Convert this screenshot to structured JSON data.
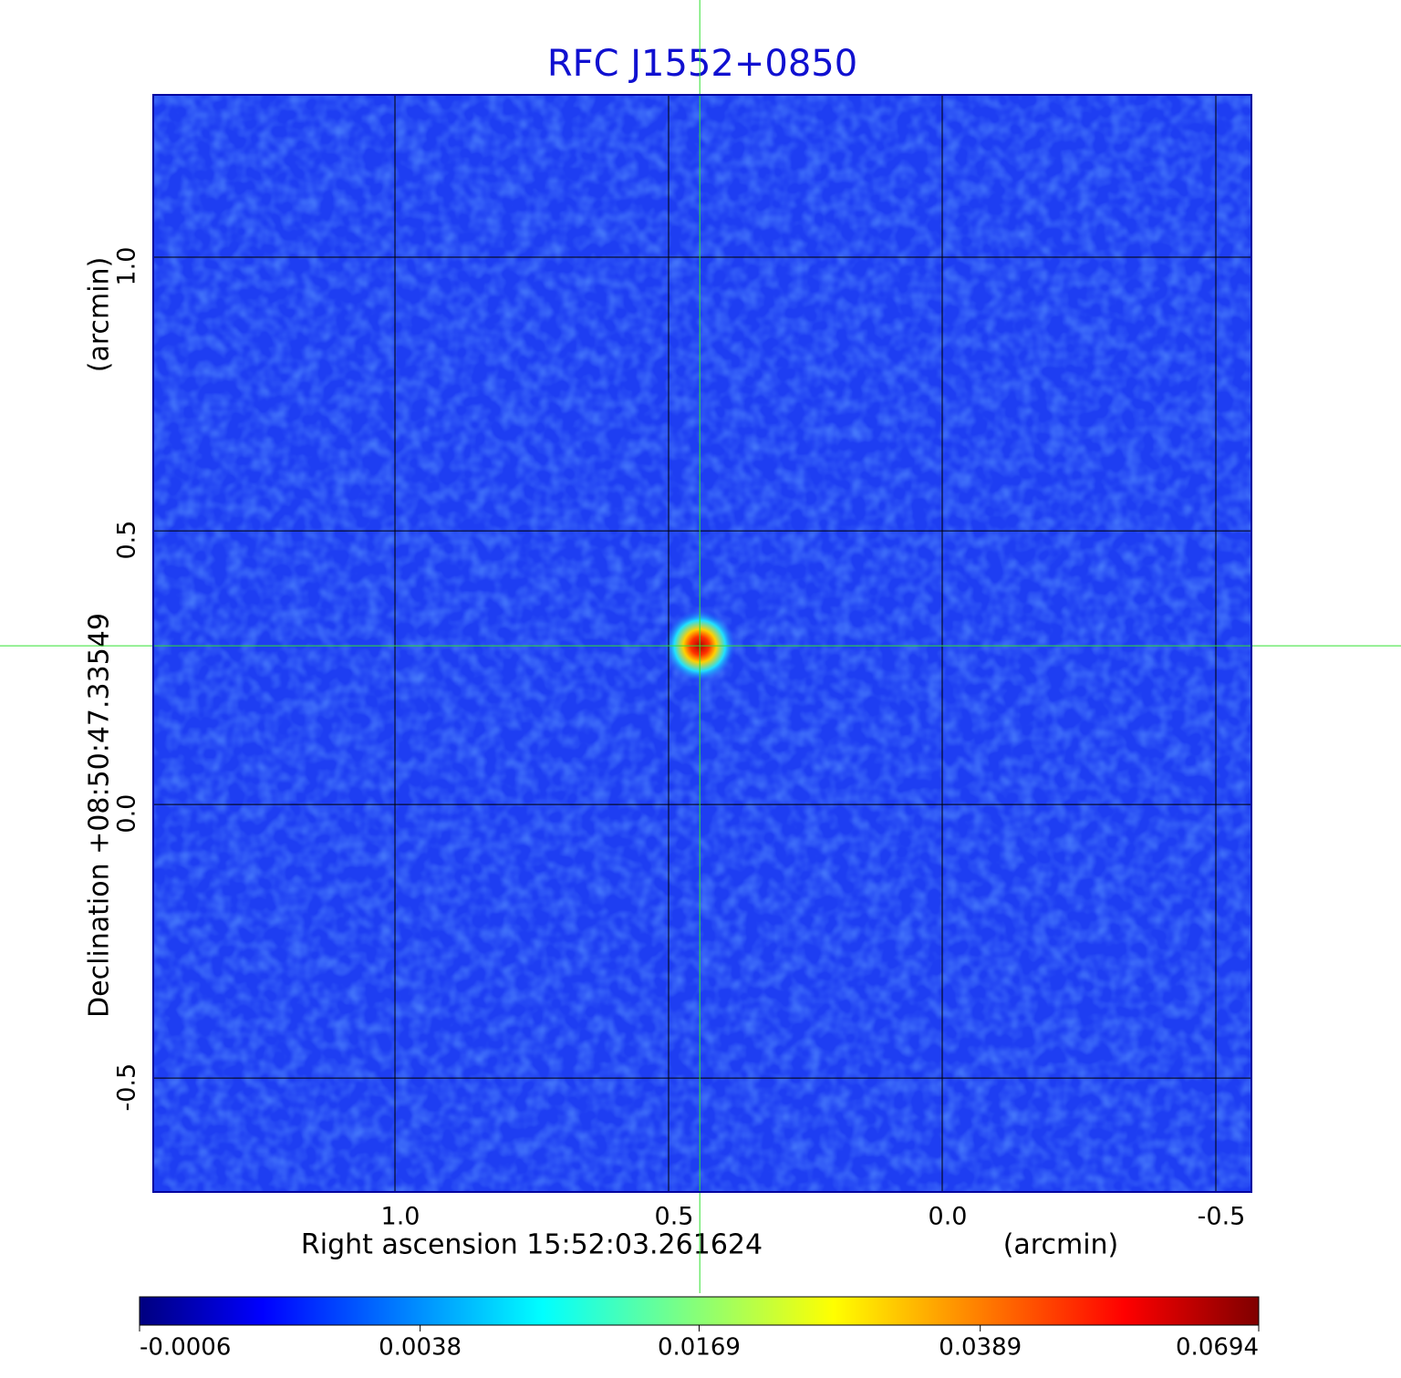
{
  "chart_data": {
    "type": "image",
    "title": "RFC J1552+0850",
    "xlabel": "Right ascension  15:52:03.261624",
    "xunit": "(arcmin)",
    "ylabel": "Declination  +08:50:47.33549",
    "yunit": "(arcmin)",
    "xlim": [
      1.4417,
      -0.565
    ],
    "ylim": [
      -0.708,
      1.2967
    ],
    "xticks": [
      {
        "value": 1,
        "label": "1.0"
      },
      0.5,
      {
        "value": 0,
        "label": "0.0"
      },
      -0.5
    ],
    "yticks": [
      {
        "value": 1,
        "label": "1.0"
      },
      0.5,
      {
        "value": 0,
        "label": "0.0"
      },
      -0.5
    ],
    "grid": true,
    "crosshair": [
      0.443,
      0.29
    ],
    "colorbar": {
      "scale": "sqrt",
      "lim": [
        -0.0006,
        0.0694
      ],
      "ticks": [
        -0.0006,
        0.0038,
        0.0169,
        0.0389,
        0.0694
      ]
    }
  }
}
